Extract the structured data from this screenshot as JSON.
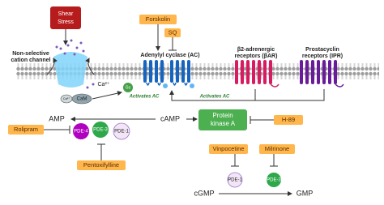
{
  "shear_stress": [
    "Shear",
    "Stress"
  ],
  "channel": {
    "label": [
      "Non-selective",
      "cation channel"
    ],
    "ion": "Ca²⁺",
    "cam": "CaM",
    "cam_ion": "Ca²⁺"
  },
  "forskolin": "Forskolin",
  "sq": "SQ",
  "adenylyl_cyclase": "Adenylyl cyclase (AC)",
  "gs": "Gs",
  "beta_receptor": [
    "β2-adrenergic",
    "receptors (βAR)"
  ],
  "prostacyclin_receptor": [
    "Prostacyclin",
    "receptors (IPR)"
  ],
  "activates": [
    "Activates AC",
    "Activates AC"
  ],
  "amp": "AMP",
  "camp": "cAMP",
  "rolipram": "Rolipram",
  "pde_camp": [
    "PDE-4",
    "PDE-3",
    "PDE-1"
  ],
  "pka": [
    "Protein",
    "kinase A"
  ],
  "h89": "H-89",
  "pentoxifylline": "Pentoxifylline",
  "vinpocetine": "Vinpocetine",
  "milrinone": "Milrinone",
  "pde_cgmp": [
    "PDE-1",
    "PDE-3"
  ],
  "cgmp": "cGMP",
  "gmp": "GMP"
}
